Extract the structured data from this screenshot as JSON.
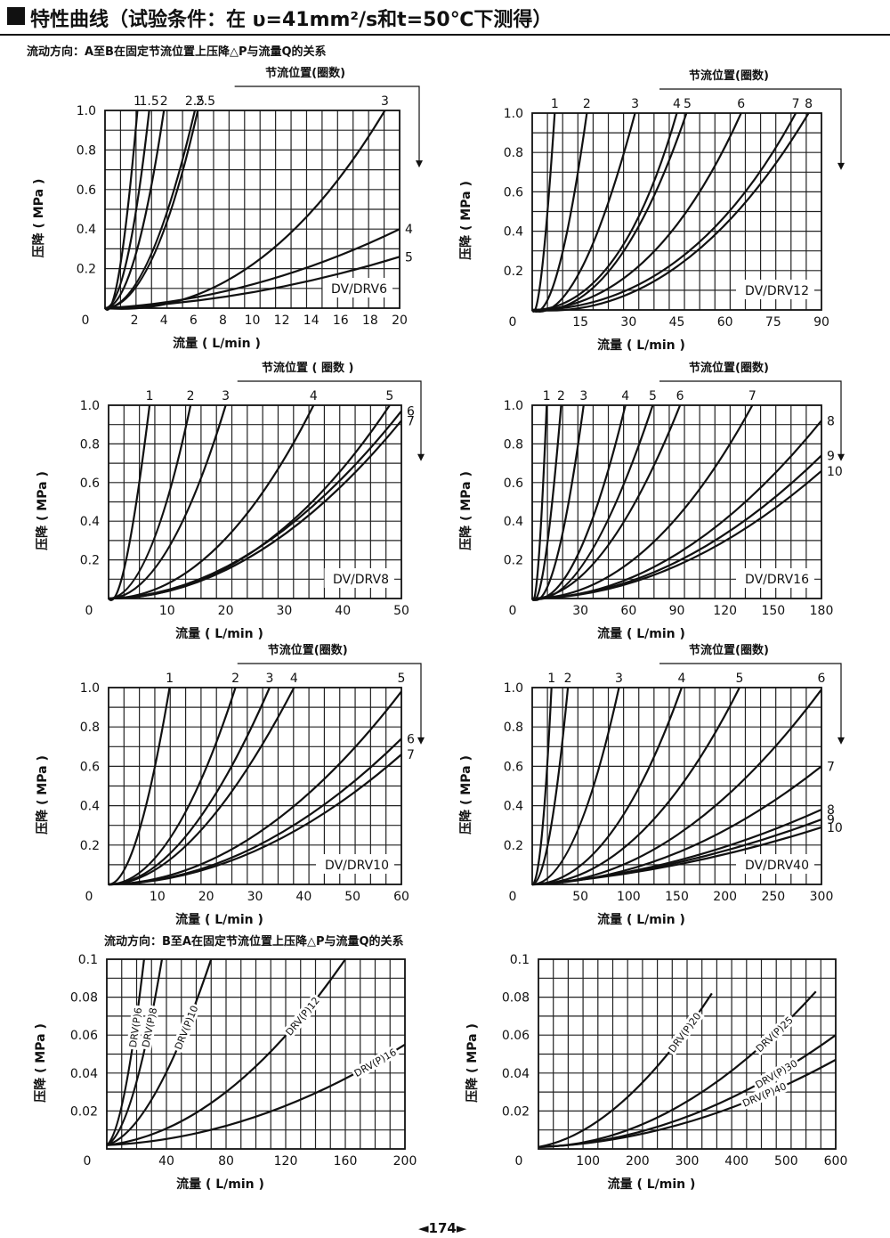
{
  "header": {
    "title": "特性曲线（试验条件：在 υ=41mm²/s和t=50℃下测得）"
  },
  "sections": {
    "a_to_b": "流动方向：A至B在固定节流位置上压降△P与流量Q的关系",
    "b_to_a": "流动方向：B至A在固定节流位置上压降△P与流量Q的关系"
  },
  "page_number": "◄174►",
  "colors": {
    "ink": "#111111",
    "grid": "#222222",
    "background": "#ffffff"
  },
  "chart_data": [
    {
      "id": "dv6",
      "type": "line",
      "top_label": "节流位置(圈数)",
      "model": "DV/DRV6",
      "xlabel": "流量 ( L/min )",
      "ylabel": "压降 ( MPa )",
      "xlim": [
        0,
        20
      ],
      "ylim": [
        0,
        1.0
      ],
      "xticks": [
        0,
        2,
        4,
        6,
        8,
        10,
        12,
        14,
        16,
        18,
        20
      ],
      "yticks": [
        0.2,
        0.4,
        0.6,
        0.8,
        1.0
      ],
      "ytick_labels": [
        "0.2",
        "0.4",
        "0.6",
        "0.8",
        "1.0"
      ],
      "grid": true,
      "arrow": true,
      "series": [
        {
          "name": "1",
          "label_pos": "top",
          "x": [
            0,
            1,
            2.2
          ],
          "y": [
            0,
            0.2,
            1.0
          ]
        },
        {
          "name": "1.5",
          "label_pos": "top",
          "x": [
            0,
            1.5,
            3
          ],
          "y": [
            0,
            0.25,
            1.0
          ]
        },
        {
          "name": "2",
          "label_pos": "top",
          "x": [
            0,
            2,
            4
          ],
          "y": [
            0,
            0.25,
            1.0
          ]
        },
        {
          "name": "2.5",
          "label_pos": "top",
          "x": [
            0,
            3,
            6.1
          ],
          "y": [
            0,
            0.25,
            1.0
          ]
        },
        {
          "name": "2.5",
          "label_pos": "top",
          "x": [
            0,
            3.2,
            6.3
          ],
          "y": [
            0,
            0.25,
            1.0
          ]
        },
        {
          "name": "3",
          "label_pos": "top",
          "x": [
            0,
            10,
            19
          ],
          "y": [
            0,
            0.22,
            1.0
          ]
        },
        {
          "name": "4",
          "label_pos": "right",
          "x": [
            0,
            10,
            20
          ],
          "y": [
            0,
            0.12,
            0.4
          ]
        },
        {
          "name": "5",
          "label_pos": "right",
          "x": [
            0,
            10,
            20
          ],
          "y": [
            0,
            0.08,
            0.26
          ]
        }
      ]
    },
    {
      "id": "dv12",
      "type": "line",
      "top_label": "节流位置(圈数)",
      "model": "DV/DRV12",
      "xlabel": "流量 ( L/min )",
      "ylabel": "压降 ( MPa )",
      "xlim": [
        0,
        90
      ],
      "ylim": [
        0,
        1.0
      ],
      "xticks": [
        0,
        15,
        30,
        45,
        60,
        75,
        90
      ],
      "yticks": [
        0.2,
        0.4,
        0.6,
        0.8,
        1.0
      ],
      "ytick_labels": [
        "0.2",
        "0.4",
        "0.6",
        "0.8",
        "1.0"
      ],
      "grid": true,
      "arrow": true,
      "series": [
        {
          "name": "1",
          "label_pos": "top",
          "x": [
            0,
            3,
            7
          ],
          "y": [
            0,
            0.2,
            1.0
          ]
        },
        {
          "name": "2",
          "label_pos": "top",
          "x": [
            0,
            8,
            17
          ],
          "y": [
            0,
            0.2,
            1.0
          ]
        },
        {
          "name": "3",
          "label_pos": "top",
          "x": [
            0,
            15,
            32
          ],
          "y": [
            0,
            0.2,
            1.0
          ]
        },
        {
          "name": "4",
          "label_pos": "top",
          "x": [
            0,
            25,
            45
          ],
          "y": [
            0,
            0.25,
            1.0
          ]
        },
        {
          "name": "5",
          "label_pos": "top",
          "x": [
            0,
            25,
            48
          ],
          "y": [
            0,
            0.22,
            1.0
          ]
        },
        {
          "name": "6",
          "label_pos": "top",
          "x": [
            0,
            35,
            65
          ],
          "y": [
            0,
            0.25,
            1.0
          ]
        },
        {
          "name": "7",
          "label_pos": "top",
          "x": [
            0,
            45,
            82
          ],
          "y": [
            0,
            0.25,
            1.0
          ]
        },
        {
          "name": "8",
          "label_pos": "top",
          "x": [
            0,
            45,
            86
          ],
          "y": [
            0,
            0.22,
            1.0
          ]
        }
      ]
    },
    {
      "id": "dv8",
      "type": "line",
      "top_label": "节流位置 ( 圈数 )",
      "model": "DV/DRV8",
      "xlabel": "流量 ( L/min )",
      "ylabel": "压降 ( MPa )",
      "xlim": [
        0,
        50
      ],
      "ylim": [
        0,
        1.0
      ],
      "xticks": [
        0,
        10,
        20,
        30,
        40,
        50
      ],
      "yticks": [
        0.2,
        0.4,
        0.6,
        0.8,
        1.0
      ],
      "ytick_labels": [
        "0.2",
        "0.4",
        "0.6",
        "0.8",
        "1.0"
      ],
      "grid": true,
      "arrow": true,
      "series": [
        {
          "name": "1",
          "label_pos": "top",
          "x": [
            0,
            3,
            7
          ],
          "y": [
            0,
            0.2,
            1.0
          ]
        },
        {
          "name": "2",
          "label_pos": "top",
          "x": [
            0,
            7,
            14
          ],
          "y": [
            0,
            0.25,
            1.0
          ]
        },
        {
          "name": "3",
          "label_pos": "top",
          "x": [
            0,
            10,
            20
          ],
          "y": [
            0,
            0.25,
            1.0
          ]
        },
        {
          "name": "4",
          "label_pos": "top",
          "x": [
            0,
            18,
            35
          ],
          "y": [
            0,
            0.25,
            1.0
          ]
        },
        {
          "name": "5",
          "label_pos": "top",
          "x": [
            0,
            25,
            48
          ],
          "y": [
            0,
            0.25,
            1.0
          ]
        },
        {
          "name": "6",
          "label_pos": "right",
          "x": [
            0,
            25,
            50
          ],
          "y": [
            0,
            0.25,
            0.97
          ]
        },
        {
          "name": "7",
          "label_pos": "right",
          "x": [
            0,
            25,
            50
          ],
          "y": [
            0,
            0.23,
            0.92
          ]
        }
      ]
    },
    {
      "id": "dv16",
      "type": "line",
      "top_label": "节流位置(圈数)",
      "model": "DV/DRV16",
      "xlabel": "流量 ( L/min )",
      "ylabel": "压降 ( MPa )",
      "xlim": [
        0,
        180
      ],
      "ylim": [
        0,
        1.0
      ],
      "xticks": [
        0,
        30,
        60,
        90,
        120,
        150,
        180
      ],
      "yticks": [
        0.2,
        0.4,
        0.6,
        0.8,
        1.0
      ],
      "ytick_labels": [
        "0.2",
        "0.4",
        "0.6",
        "0.8",
        "1.0"
      ],
      "grid": true,
      "arrow": true,
      "series": [
        {
          "name": "1",
          "label_pos": "top",
          "x": [
            0,
            4,
            9
          ],
          "y": [
            0,
            0.2,
            1.0
          ]
        },
        {
          "name": "2",
          "label_pos": "top",
          "x": [
            0,
            8,
            18
          ],
          "y": [
            0,
            0.2,
            1.0
          ]
        },
        {
          "name": "3",
          "label_pos": "top",
          "x": [
            0,
            15,
            32
          ],
          "y": [
            0,
            0.2,
            1.0
          ]
        },
        {
          "name": "4",
          "label_pos": "top",
          "x": [
            0,
            28,
            58
          ],
          "y": [
            0,
            0.22,
            1.0
          ]
        },
        {
          "name": "5",
          "label_pos": "top",
          "x": [
            0,
            35,
            75
          ],
          "y": [
            0,
            0.22,
            1.0
          ]
        },
        {
          "name": "6",
          "label_pos": "top",
          "x": [
            0,
            45,
            92
          ],
          "y": [
            0,
            0.25,
            1.0
          ]
        },
        {
          "name": "7",
          "label_pos": "top",
          "x": [
            0,
            70,
            137
          ],
          "y": [
            0,
            0.25,
            1.0
          ]
        },
        {
          "name": "8",
          "label_pos": "right",
          "x": [
            0,
            90,
            180
          ],
          "y": [
            0,
            0.23,
            0.92
          ]
        },
        {
          "name": "9",
          "label_pos": "right",
          "x": [
            0,
            90,
            180
          ],
          "y": [
            0,
            0.19,
            0.74
          ]
        },
        {
          "name": "10",
          "label_pos": "right",
          "x": [
            0,
            90,
            180
          ],
          "y": [
            0,
            0.17,
            0.66
          ]
        }
      ]
    },
    {
      "id": "dv10",
      "type": "line",
      "top_label": "节流位置(圈数)",
      "model": "DV/DRV10",
      "xlabel": "流量 ( L/min )",
      "ylabel": "压降 ( MPa )",
      "xlim": [
        0,
        60
      ],
      "ylim": [
        0,
        1.0
      ],
      "xticks": [
        0,
        10,
        20,
        30,
        40,
        50,
        60
      ],
      "yticks": [
        0.2,
        0.4,
        0.6,
        0.8,
        1.0
      ],
      "ytick_labels": [
        "0.2",
        "0.4",
        "0.6",
        "0.8",
        "1.0"
      ],
      "grid": true,
      "arrow": true,
      "series": [
        {
          "name": "1",
          "label_pos": "top",
          "x": [
            0,
            6,
            12.5
          ],
          "y": [
            0,
            0.25,
            1.0
          ]
        },
        {
          "name": "2",
          "label_pos": "top",
          "x": [
            0,
            13,
            26
          ],
          "y": [
            0,
            0.25,
            1.0
          ]
        },
        {
          "name": "3",
          "label_pos": "top",
          "x": [
            0,
            16,
            33
          ],
          "y": [
            0,
            0.25,
            1.0
          ]
        },
        {
          "name": "4",
          "label_pos": "top",
          "x": [
            0,
            18,
            38
          ],
          "y": [
            0,
            0.25,
            1.0
          ]
        },
        {
          "name": "5",
          "label_pos": "top",
          "x": [
            0,
            30,
            60
          ],
          "y": [
            0,
            0.25,
            0.98
          ]
        },
        {
          "name": "6",
          "label_pos": "right",
          "x": [
            0,
            30,
            60
          ],
          "y": [
            0,
            0.19,
            0.74
          ]
        },
        {
          "name": "7",
          "label_pos": "right",
          "x": [
            0,
            30,
            60
          ],
          "y": [
            0,
            0.17,
            0.66
          ]
        }
      ]
    },
    {
      "id": "dv40",
      "type": "line",
      "top_label": "节流位置(圈数)",
      "model": "DV/DRV40",
      "xlabel": "流量 ( L/min )",
      "ylabel": "压降 ( MPa )",
      "xlim": [
        0,
        300
      ],
      "ylim": [
        0,
        1.0
      ],
      "xticks": [
        0,
        50,
        100,
        150,
        200,
        250,
        300
      ],
      "yticks": [
        0.2,
        0.4,
        0.6,
        0.8,
        1.0
      ],
      "ytick_labels": [
        "0.2",
        "0.4",
        "0.6",
        "0.8",
        "1.0"
      ],
      "grid": true,
      "arrow": true,
      "series": [
        {
          "name": "1",
          "label_pos": "top",
          "x": [
            0,
            10,
            20
          ],
          "y": [
            0,
            0.25,
            1.0
          ]
        },
        {
          "name": "2",
          "label_pos": "top",
          "x": [
            0,
            18,
            37
          ],
          "y": [
            0,
            0.25,
            1.0
          ]
        },
        {
          "name": "3",
          "label_pos": "top",
          "x": [
            0,
            45,
            90
          ],
          "y": [
            0,
            0.25,
            1.0
          ]
        },
        {
          "name": "4",
          "label_pos": "top",
          "x": [
            0,
            80,
            155
          ],
          "y": [
            0,
            0.25,
            1.0
          ]
        },
        {
          "name": "5",
          "label_pos": "top",
          "x": [
            0,
            110,
            215
          ],
          "y": [
            0,
            0.25,
            1.0
          ]
        },
        {
          "name": "6",
          "label_pos": "top",
          "x": [
            0,
            150,
            300
          ],
          "y": [
            0,
            0.25,
            0.99
          ]
        },
        {
          "name": "7",
          "label_pos": "right",
          "x": [
            0,
            150,
            300
          ],
          "y": [
            0,
            0.16,
            0.6
          ]
        },
        {
          "name": "8",
          "label_pos": "right",
          "x": [
            0,
            150,
            300
          ],
          "y": [
            0,
            0.12,
            0.38
          ]
        },
        {
          "name": "9",
          "label_pos": "right",
          "x": [
            0,
            150,
            300
          ],
          "y": [
            0,
            0.11,
            0.33
          ]
        },
        {
          "name": "10",
          "label_pos": "right",
          "x": [
            0,
            150,
            300
          ],
          "y": [
            0,
            0.1,
            0.29
          ]
        }
      ]
    },
    {
      "id": "drvp_small",
      "type": "line",
      "top_label": "",
      "model": "",
      "xlabel": "流量 ( L/min )",
      "ylabel": "压降 ( MPa )",
      "xlim": [
        0,
        200
      ],
      "ylim": [
        0,
        0.1
      ],
      "xticks": [
        0,
        40,
        80,
        120,
        160,
        200
      ],
      "yticks": [
        0.02,
        0.04,
        0.06,
        0.08,
        0.1
      ],
      "ytick_labels": [
        "0.02",
        "0.04",
        "0.06",
        "0.08",
        "0.1"
      ],
      "grid": true,
      "arrow": false,
      "series": [
        {
          "name": "DRV(P)6",
          "label_pos": "inline",
          "label_at": 0.78,
          "x": [
            0,
            12,
            25
          ],
          "y": [
            0.002,
            0.03,
            0.1
          ]
        },
        {
          "name": "DRV(P)8",
          "label_pos": "inline",
          "label_at": 0.78,
          "x": [
            0,
            18,
            37
          ],
          "y": [
            0.002,
            0.03,
            0.1
          ]
        },
        {
          "name": "DRV(P)10",
          "label_pos": "inline",
          "label_at": 0.78,
          "x": [
            0,
            33,
            70
          ],
          "y": [
            0.002,
            0.03,
            0.1
          ]
        },
        {
          "name": "DRV(P)12",
          "label_pos": "inline",
          "label_at": 0.82,
          "x": [
            0,
            80,
            160
          ],
          "y": [
            0.002,
            0.03,
            0.1
          ]
        },
        {
          "name": "DRV(P)16",
          "label_pos": "inline",
          "label_at": 0.9,
          "x": [
            0,
            100,
            200
          ],
          "y": [
            0.002,
            0.017,
            0.055
          ]
        }
      ]
    },
    {
      "id": "drvp_large",
      "type": "line",
      "top_label": "",
      "model": "",
      "xlabel": "流量 ( L/min )",
      "ylabel": "压降 ( MPa )",
      "xlim": [
        0,
        600
      ],
      "ylim": [
        0,
        0.1
      ],
      "xticks": [
        0,
        100,
        200,
        300,
        400,
        500,
        600
      ],
      "yticks": [
        0.02,
        0.04,
        0.06,
        0.08,
        0.1
      ],
      "ytick_labels": [
        "0.02",
        "0.04",
        "0.06",
        "0.08",
        "0.1"
      ],
      "grid": true,
      "arrow": false,
      "series": [
        {
          "name": "DRV(P)20",
          "label_pos": "inline",
          "label_at": 0.85,
          "x": [
            0,
            170,
            350
          ],
          "y": [
            0.001,
            0.025,
            0.082
          ]
        },
        {
          "name": "DRV(P)25",
          "label_pos": "inline",
          "label_at": 0.85,
          "x": [
            0,
            280,
            560
          ],
          "y": [
            0.001,
            0.022,
            0.083
          ]
        },
        {
          "name": "DRV(P)30",
          "label_pos": "inline",
          "label_at": 0.8,
          "x": [
            0,
            300,
            600
          ],
          "y": [
            0.001,
            0.017,
            0.06
          ]
        },
        {
          "name": "DRV(P)40",
          "label_pos": "inline",
          "label_at": 0.76,
          "x": [
            0,
            300,
            600
          ],
          "y": [
            0.001,
            0.014,
            0.047
          ]
        }
      ]
    }
  ]
}
